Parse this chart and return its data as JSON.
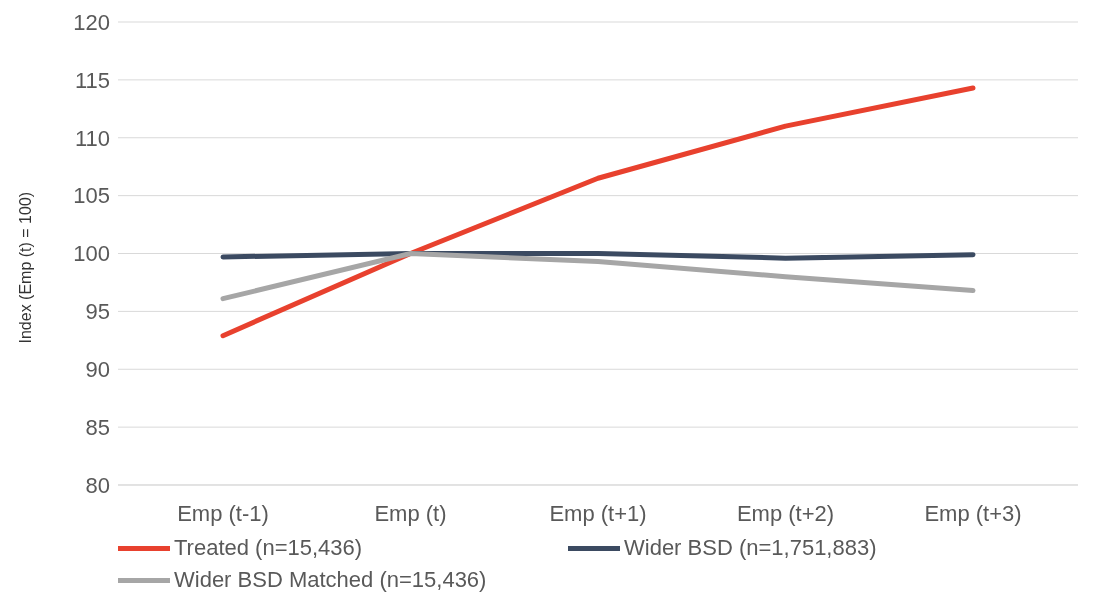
{
  "chart_data": {
    "type": "line",
    "ylabel": "Index (Emp (t) = 100)",
    "categories": [
      "Emp (t-1)",
      "Emp (t)",
      "Emp (t+1)",
      "Emp (t+2)",
      "Emp (t+3)"
    ],
    "series": [
      {
        "name": "Treated (n=15,436)",
        "color": "#e8412e",
        "values": [
          92.9,
          100,
          106.5,
          111,
          114.3
        ]
      },
      {
        "name": "Wider BSD (n=1,751,883)",
        "color": "#3b4a61",
        "values": [
          99.7,
          100,
          100,
          99.6,
          99.9
        ]
      },
      {
        "name": "Wider BSD Matched (n=15,436)",
        "color": "#a6a6a6",
        "values": [
          96.1,
          100,
          99.3,
          98,
          96.8
        ]
      }
    ],
    "ylim": [
      80,
      120
    ],
    "yticks": [
      80,
      85,
      90,
      95,
      100,
      105,
      110,
      115,
      120
    ],
    "grid": "y",
    "legend": "bottom",
    "marker": "none",
    "line_style": "solid"
  }
}
